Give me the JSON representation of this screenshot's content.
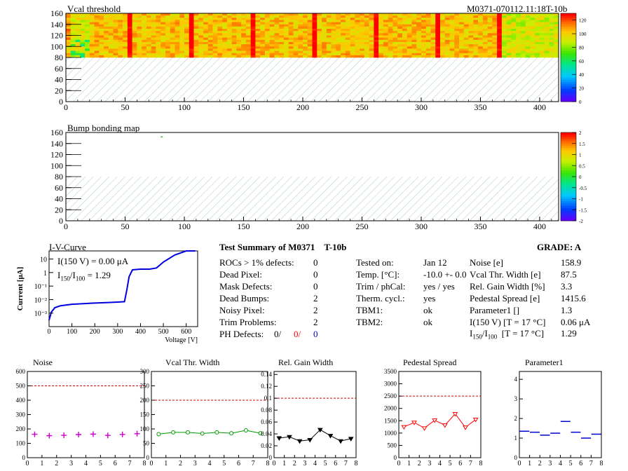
{
  "header": {
    "module_id": "M0371-070112.11:18T-10b"
  },
  "vcal_map": {
    "title": "Vcal threshold",
    "x_ticks": [
      "0",
      "50",
      "100",
      "150",
      "200",
      "250",
      "300",
      "350",
      "400"
    ],
    "y_ticks": [
      "0",
      "20",
      "40",
      "60",
      "80",
      "100",
      "120",
      "140",
      "160"
    ],
    "palette_ticks": [
      "0",
      "20",
      "40",
      "60",
      "80",
      "100",
      "120"
    ],
    "xlim": [
      0,
      416
    ],
    "ylim": [
      0,
      160
    ],
    "filled_rows": [
      80,
      160
    ],
    "zlim": [
      0,
      130
    ]
  },
  "bump_map": {
    "title": "Bump bonding map",
    "x_ticks": [
      "0",
      "50",
      "100",
      "150",
      "200",
      "250",
      "300",
      "350",
      "400"
    ],
    "y_ticks": [
      "0",
      "20",
      "40",
      "60",
      "80",
      "100",
      "120",
      "140",
      "160"
    ],
    "palette_ticks": [
      "-2",
      "-1.5",
      "-1",
      "-0.5",
      "0",
      "0.5",
      "1",
      "1.5",
      "2"
    ],
    "xlim": [
      0,
      416
    ],
    "ylim": [
      0,
      160
    ],
    "zlim": [
      -2,
      2
    ]
  },
  "iv_curve": {
    "title": "I-V-Curve",
    "ylabel": "Current [μA]",
    "xlabel": "Voltage [V]",
    "x_ticks": [
      "0",
      "100",
      "200",
      "300",
      "400",
      "500",
      "600"
    ],
    "y_ticks": [
      "10⁻³",
      "10⁻²",
      "10⁻¹",
      "1",
      "10"
    ],
    "i150_label": "I(150 V) = 0.00 μA",
    "ratio_label_base": "I",
    "ratio_sub1": "150",
    "ratio_sub2": "100",
    "ratio_value": " =  1.29",
    "points": [
      [
        0,
        0.0003
      ],
      [
        10,
        0.0012
      ],
      [
        25,
        0.0025
      ],
      [
        50,
        0.0035
      ],
      [
        100,
        0.0045
      ],
      [
        150,
        0.005
      ],
      [
        200,
        0.0055
      ],
      [
        250,
        0.006
      ],
      [
        300,
        0.0065
      ],
      [
        330,
        0.007
      ],
      [
        340,
        0.05
      ],
      [
        350,
        0.5
      ],
      [
        365,
        1.6
      ],
      [
        400,
        1.8
      ],
      [
        440,
        1.8
      ],
      [
        470,
        2.2
      ],
      [
        500,
        6
      ],
      [
        550,
        20
      ],
      [
        600,
        40
      ],
      [
        640,
        40
      ]
    ],
    "xlim": [
      0,
      650
    ],
    "ylim_log": [
      0.0001,
      40
    ]
  },
  "summary": {
    "title": "Test Summary of M0371",
    "title_id": "T-10b",
    "grade": "GRADE:  A",
    "left_rows": [
      {
        "label": "ROCs > 1% defects:",
        "value": "0"
      },
      {
        "label": "Dead Pixel:",
        "value": "0"
      },
      {
        "label": "Mask Defects:",
        "value": "0"
      },
      {
        "label": "Dead Bumps:",
        "value": "2"
      },
      {
        "label": "Noisy Pixel:",
        "value": "2"
      },
      {
        "label": "Trim Problems:",
        "value": "2"
      }
    ],
    "ph_label": "PH Defects:",
    "ph_values": [
      "0/",
      "0/",
      "0"
    ],
    "ph_colors": [
      "#000000",
      "#ff0000",
      "#0000cc"
    ],
    "mid_rows": [
      {
        "label": "Tested on:",
        "value": "Jan 12"
      },
      {
        "label": "Temp. [°C]:",
        "value": "-10.0 +- 0.0"
      },
      {
        "label": "Trim / phCal:",
        "value": "yes / yes"
      },
      {
        "label": "Therm. cycl.:",
        "value": "yes"
      },
      {
        "label": "TBM1:",
        "value": "ok"
      },
      {
        "label": "TBM2:",
        "value": "ok"
      }
    ],
    "right_rows": [
      {
        "label": "Noise [e]",
        "value": "158.9"
      },
      {
        "label": "Vcal Thr. Width [e]",
        "value": "87.5"
      },
      {
        "label": "Rel. Gain Width [%]",
        "value": "3.3"
      },
      {
        "label": "Pedestal Spread [e]",
        "value": "1415.6"
      },
      {
        "label": "Parameter1 []",
        "value": "1.3"
      },
      {
        "label": "I(150 V) [T = 17 °C]",
        "value": "0.06 μA"
      }
    ],
    "ratio_row": {
      "base": "I",
      "sub1": "150",
      "sep": "/I",
      "sub2": "100",
      "label_rest": "[T = 17 °C]",
      "value": "1.29"
    }
  },
  "chart_data": [
    {
      "type": "scatter",
      "title": "Noise",
      "x": [
        0.5,
        1.5,
        2.5,
        3.5,
        4.5,
        5.5,
        6.5,
        7.5
      ],
      "values": [
        163,
        153,
        156,
        161,
        164,
        155,
        162,
        167
      ],
      "xlim": [
        0,
        8
      ],
      "ylim": [
        0,
        600
      ],
      "reference_line": 500,
      "color": "#cc00cc",
      "marker": "plus",
      "connect": false,
      "x_ticks": [
        "0",
        "1",
        "2",
        "3",
        "4",
        "5",
        "6",
        "7",
        "8"
      ],
      "y_ticks": [
        "0",
        "100",
        "200",
        "300",
        "400",
        "500",
        "600"
      ]
    },
    {
      "type": "line",
      "title": "Vcal Thr. Width",
      "x": [
        0.5,
        1.5,
        2.5,
        3.5,
        4.5,
        5.5,
        6.5,
        7.5
      ],
      "values": [
        82,
        88,
        88,
        84,
        88,
        85,
        95,
        85
      ],
      "xlim": [
        0,
        8
      ],
      "ylim": [
        0,
        300
      ],
      "reference_line": 200,
      "color": "#009900",
      "marker": "circle",
      "connect": true,
      "x_ticks": [
        "0",
        "1",
        "2",
        "3",
        "4",
        "5",
        "6",
        "7",
        "8"
      ],
      "y_ticks": [
        "0",
        "50",
        "100",
        "150",
        "200",
        "250",
        "300"
      ]
    },
    {
      "type": "line",
      "title": "Rel. Gain Width",
      "x": [
        0.5,
        1.5,
        2.5,
        3.5,
        4.5,
        5.5,
        6.5,
        7.5
      ],
      "values": [
        0.033,
        0.035,
        0.028,
        0.03,
        0.047,
        0.037,
        0.028,
        0.032
      ],
      "xlim": [
        0,
        8
      ],
      "ylim": [
        0,
        0.145
      ],
      "reference_line": 0.1,
      "color": "#000000",
      "marker": "tri",
      "connect": true,
      "x_ticks": [
        "0",
        "1",
        "2",
        "3",
        "4",
        "5",
        "6",
        "7",
        "8"
      ],
      "y_ticks": [
        "0",
        "0.02",
        "0.04",
        "0.06",
        "0.08",
        "0.1",
        "0.12",
        "0.14"
      ]
    },
    {
      "type": "line",
      "title": "Pedestal Spread",
      "x": [
        0.5,
        1.5,
        2.5,
        3.5,
        4.5,
        5.5,
        6.5,
        7.5
      ],
      "values": [
        1250,
        1430,
        1200,
        1520,
        1320,
        1780,
        1230,
        1550
      ],
      "xlim": [
        0,
        8
      ],
      "ylim": [
        0,
        3500
      ],
      "reference_line": 2500,
      "color": "#ff0000",
      "marker": "tri",
      "connect": true,
      "x_ticks": [
        "0",
        "1",
        "2",
        "3",
        "4",
        "5",
        "6",
        "7",
        "8"
      ],
      "y_ticks": [
        "0",
        "500",
        "1000",
        "1500",
        "2000",
        "2500",
        "3000",
        "3500"
      ]
    },
    {
      "type": "scatter",
      "title": "Parameter1",
      "x": [
        0.5,
        1.5,
        2.5,
        3.5,
        4.5,
        5.5,
        6.5,
        7.5
      ],
      "values": [
        1.35,
        1.3,
        1.15,
        1.25,
        1.85,
        1.3,
        1.0,
        1.2
      ],
      "xlim": [
        0,
        8
      ],
      "ylim": [
        0,
        4.4
      ],
      "reference_line": null,
      "color": "#0000cc",
      "marker": "hbar",
      "connect": false,
      "x_ticks": [
        "0",
        "1",
        "2",
        "3",
        "4",
        "5",
        "6",
        "7",
        "8"
      ],
      "y_ticks": [
        "0",
        "1",
        "2",
        "3",
        "4"
      ]
    }
  ]
}
